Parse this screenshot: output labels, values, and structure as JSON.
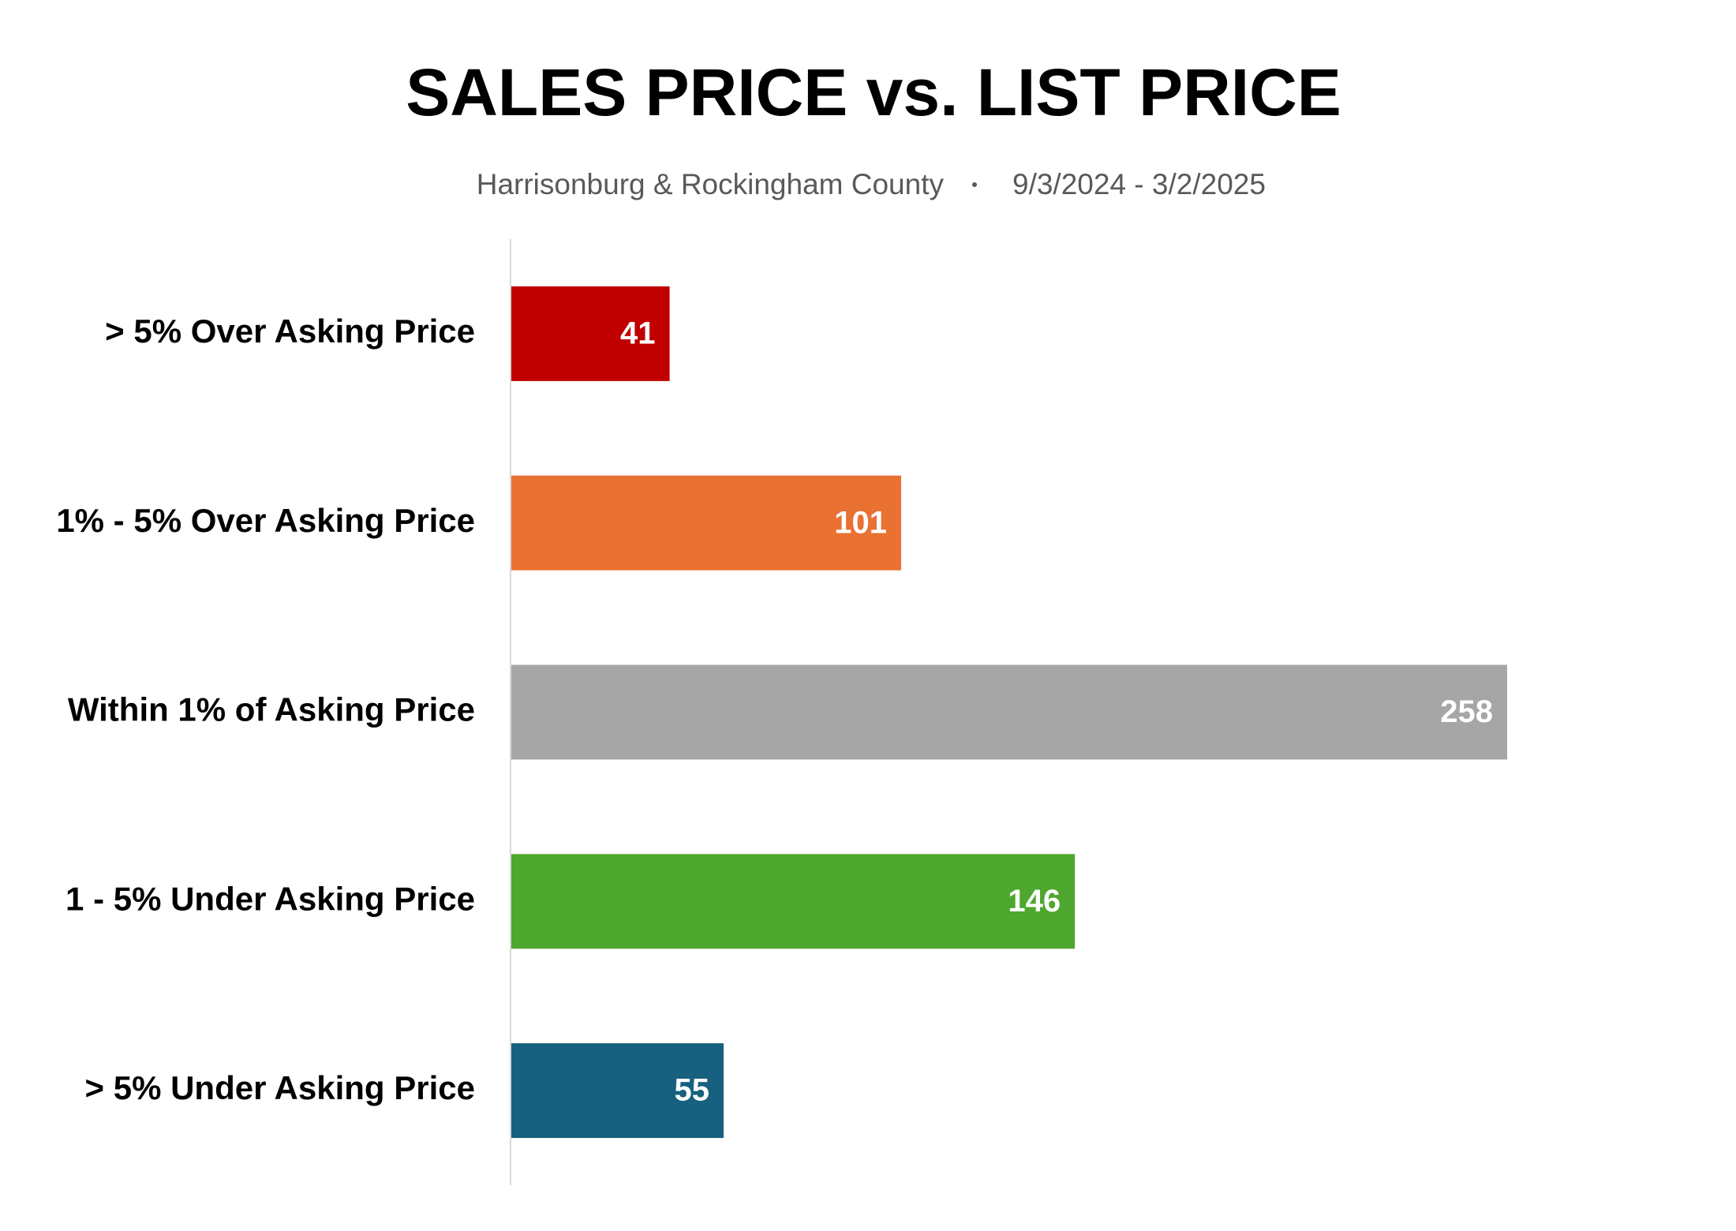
{
  "chart_data": {
    "type": "hbar",
    "title": "SALES PRICE vs. LIST PRICE",
    "subtitle": [
      "Harrisonburg & Rockingham County",
      "9/3/2024 - 3/2/2025"
    ],
    "categories": [
      "> 5% Over Asking Price",
      "1% - 5% Over Asking Price",
      "Within 1% of Asking Price",
      "1 - 5% Under Asking Price",
      "> 5% Under Asking Price"
    ],
    "values": [
      41,
      101,
      258,
      146,
      55
    ],
    "colors": [
      "#c00000",
      "#e97132",
      "#a6a6a6",
      "#4ea72e",
      "#17607f"
    ]
  }
}
